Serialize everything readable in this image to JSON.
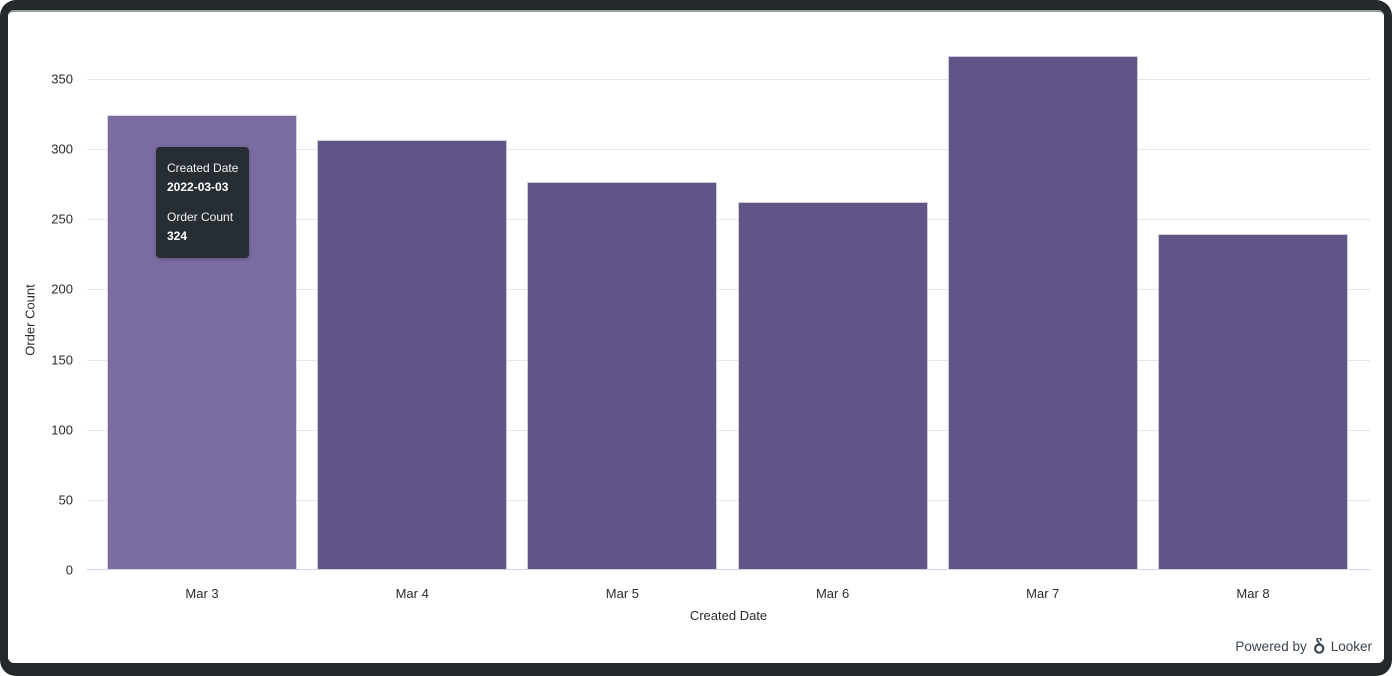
{
  "chart_data": {
    "type": "bar",
    "title": "",
    "categories": [
      "Mar 3",
      "Mar 4",
      "Mar 5",
      "Mar 6",
      "Mar 7",
      "Mar 8"
    ],
    "values": [
      324,
      306,
      276,
      262,
      366,
      239
    ],
    "xlabel": "Created Date",
    "ylabel": "Order Count",
    "ylim": [
      0,
      375
    ],
    "yticks": [
      0,
      50,
      100,
      150,
      200,
      250,
      300,
      350
    ],
    "grid": true,
    "legend": "none",
    "bar_color": "#615487",
    "hover_bar_color": "#7a6ba0",
    "hover_index": 0
  },
  "tooltip": {
    "dim_label": "Created Date",
    "dim_value": "2022-03-03",
    "measure_label": "Order Count",
    "measure_value": "324"
  },
  "footer": {
    "powered_by": "Powered by",
    "brand": "Looker",
    "color": "#3a4651"
  }
}
